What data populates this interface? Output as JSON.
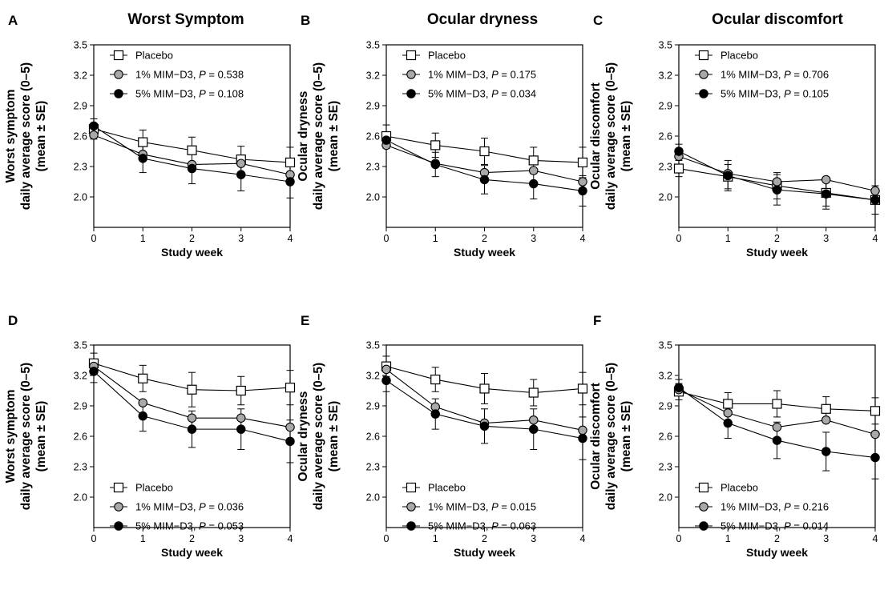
{
  "column_titles": [
    "Worst Symptom",
    "Ocular dryness",
    "Ocular discomfort"
  ],
  "colors": {
    "placebo_fill": "#ffffff",
    "mim1_fill": "#a9a9a9",
    "mim5_fill": "#000000",
    "line": "#000000"
  },
  "chart_data": [
    {
      "panel": "A",
      "type": "line",
      "ylabel_lines": [
        "Worst symptom",
        "daily average score (0–5)",
        "(mean ± SE)"
      ],
      "xlabel": "Study week",
      "x": [
        0,
        1,
        2,
        3,
        4
      ],
      "xlim": [
        0,
        4
      ],
      "ylim": [
        1.7,
        3.5
      ],
      "xticks": [
        "0",
        "1",
        "2",
        "3",
        "4"
      ],
      "yticks": [
        "2.0",
        "2.3",
        "2.6",
        "2.9",
        "3.2",
        "3.5"
      ],
      "legend_position": "top-left",
      "series": [
        {
          "name": "Placebo",
          "p_value": "",
          "marker": "open-square",
          "values": [
            2.67,
            2.54,
            2.46,
            2.37,
            2.34
          ],
          "errors": [
            0.1,
            0.12,
            0.13,
            0.13,
            0.15
          ]
        },
        {
          "name": "1% MIM−D3",
          "p_value": "0.538",
          "marker": "gray-circle",
          "values": [
            2.61,
            2.42,
            2.32,
            2.33,
            2.22
          ],
          "errors": [
            0,
            0,
            0,
            0,
            0
          ]
        },
        {
          "name": "5% MIM−D3",
          "p_value": "0.108",
          "marker": "black-circle",
          "values": [
            2.7,
            2.38,
            2.28,
            2.22,
            2.15
          ],
          "errors": [
            0.07,
            0.14,
            0.15,
            0.16,
            0.16
          ]
        }
      ]
    },
    {
      "panel": "B",
      "type": "line",
      "ylabel_lines": [
        "Ocular dryness",
        "daily average score (0–5)",
        "(mean ± SE)"
      ],
      "xlabel": "Study week",
      "x": [
        0,
        1,
        2,
        3,
        4
      ],
      "xlim": [
        0,
        4
      ],
      "ylim": [
        1.7,
        3.5
      ],
      "xticks": [
        "0",
        "1",
        "2",
        "3",
        "4"
      ],
      "yticks": [
        "2.0",
        "2.3",
        "2.6",
        "2.9",
        "3.2",
        "3.5"
      ],
      "legend_position": "top-left",
      "series": [
        {
          "name": "Placebo",
          "p_value": "",
          "marker": "open-square",
          "values": [
            2.6,
            2.51,
            2.45,
            2.36,
            2.34
          ],
          "errors": [
            0.11,
            0.12,
            0.13,
            0.13,
            0.15
          ]
        },
        {
          "name": "1% MIM−D3",
          "p_value": "0.175",
          "marker": "gray-circle",
          "values": [
            2.51,
            2.33,
            2.24,
            2.26,
            2.15
          ],
          "errors": [
            0,
            0,
            0,
            0,
            0
          ]
        },
        {
          "name": "5% MIM−D3",
          "p_value": "0.034",
          "marker": "black-circle",
          "values": [
            2.56,
            2.32,
            2.17,
            2.13,
            2.06
          ],
          "errors": [
            0.08,
            0.12,
            0.14,
            0.15,
            0.15
          ]
        }
      ]
    },
    {
      "panel": "C",
      "type": "line",
      "ylabel_lines": [
        "Ocular discomfort",
        "daily average score (0–5)",
        "(mean ± SE)"
      ],
      "xlabel": "Study week",
      "x": [
        0,
        1,
        2,
        3,
        4
      ],
      "xlim": [
        0,
        4
      ],
      "ylim": [
        1.7,
        3.5
      ],
      "xticks": [
        "0",
        "1",
        "2",
        "3",
        "4"
      ],
      "yticks": [
        "2.0",
        "2.3",
        "2.6",
        "2.9",
        "3.2",
        "3.5"
      ],
      "legend_position": "top-left",
      "series": [
        {
          "name": "Placebo",
          "p_value": "",
          "marker": "open-square",
          "values": [
            2.28,
            2.2,
            2.11,
            2.04,
            1.97
          ],
          "errors": [
            0.08,
            0.12,
            0.13,
            0.13,
            0.14
          ]
        },
        {
          "name": "1% MIM−D3",
          "p_value": "0.706",
          "marker": "gray-circle",
          "values": [
            2.4,
            2.23,
            2.15,
            2.17,
            2.06
          ],
          "errors": [
            0,
            0,
            0,
            0,
            0
          ]
        },
        {
          "name": "5% MIM−D3",
          "p_value": "0.105",
          "marker": "black-circle",
          "values": [
            2.45,
            2.21,
            2.07,
            2.03,
            1.97
          ],
          "errors": [
            0.07,
            0.15,
            0.15,
            0.15,
            0.14
          ]
        }
      ]
    },
    {
      "panel": "D",
      "type": "line",
      "ylabel_lines": [
        "Worst symptom",
        "daily average score (0–5)",
        "(mean ± SE)"
      ],
      "xlabel": "Study week",
      "x": [
        0,
        1,
        2,
        3,
        4
      ],
      "xlim": [
        0,
        4
      ],
      "ylim": [
        1.7,
        3.5
      ],
      "xticks": [
        "0",
        "1",
        "2",
        "3",
        "4"
      ],
      "yticks": [
        "2.0",
        "2.3",
        "2.6",
        "2.9",
        "3.2",
        "3.5"
      ],
      "legend_position": "bottom-left",
      "series": [
        {
          "name": "Placebo",
          "p_value": "",
          "marker": "open-square",
          "values": [
            3.32,
            3.17,
            3.06,
            3.05,
            3.08
          ],
          "errors": [
            0.1,
            0.13,
            0.17,
            0.14,
            0.17
          ]
        },
        {
          "name": "1% MIM−D3",
          "p_value": "0.036",
          "marker": "gray-circle",
          "values": [
            3.29,
            2.93,
            2.78,
            2.78,
            2.69
          ],
          "errors": [
            0,
            0,
            0,
            0,
            0
          ]
        },
        {
          "name": "5% MIM−D3",
          "p_value": "0.053",
          "marker": "black-circle",
          "values": [
            3.24,
            2.8,
            2.67,
            2.67,
            2.55
          ],
          "errors": [
            0.11,
            0.15,
            0.18,
            0.2,
            0.21
          ]
        }
      ]
    },
    {
      "panel": "E",
      "type": "line",
      "ylabel_lines": [
        "Ocular dryness",
        "daily average score (0–5)",
        "(mean ± SE)"
      ],
      "xlabel": "Study week",
      "x": [
        0,
        1,
        2,
        3,
        4
      ],
      "xlim": [
        0,
        4
      ],
      "ylim": [
        1.7,
        3.5
      ],
      "xticks": [
        "0",
        "1",
        "2",
        "3",
        "4"
      ],
      "yticks": [
        "2.0",
        "2.3",
        "2.6",
        "2.9",
        "3.2",
        "3.5"
      ],
      "legend_position": "bottom-left",
      "series": [
        {
          "name": "Placebo",
          "p_value": "",
          "marker": "open-square",
          "values": [
            3.29,
            3.16,
            3.07,
            3.03,
            3.07
          ],
          "errors": [
            0.1,
            0.12,
            0.15,
            0.13,
            0.16
          ]
        },
        {
          "name": "1% MIM−D3",
          "p_value": "0.015",
          "marker": "gray-circle",
          "values": [
            3.26,
            2.89,
            2.73,
            2.76,
            2.66
          ],
          "errors": [
            0,
            0,
            0,
            0,
            0
          ]
        },
        {
          "name": "5% MIM−D3",
          "p_value": "0.063",
          "marker": "black-circle",
          "values": [
            3.15,
            2.82,
            2.7,
            2.67,
            2.58
          ],
          "errors": [
            0.11,
            0.15,
            0.17,
            0.2,
            0.21
          ]
        }
      ]
    },
    {
      "panel": "F",
      "type": "line",
      "ylabel_lines": [
        "Ocular discomfort",
        "daily average score (0–5)",
        "(mean ± SE)"
      ],
      "xlabel": "Study week",
      "x": [
        0,
        1,
        2,
        3,
        4
      ],
      "xlim": [
        0,
        4
      ],
      "ylim": [
        1.7,
        3.5
      ],
      "xticks": [
        "0",
        "1",
        "2",
        "3",
        "4"
      ],
      "yticks": [
        "2.0",
        "2.3",
        "2.6",
        "2.9",
        "3.2",
        "3.5"
      ],
      "legend_position": "bottom-left",
      "series": [
        {
          "name": "Placebo",
          "p_value": "",
          "marker": "open-square",
          "values": [
            3.04,
            2.92,
            2.92,
            2.87,
            2.85
          ],
          "errors": [
            0.08,
            0.11,
            0.13,
            0.12,
            0.13
          ]
        },
        {
          "name": "1% MIM−D3",
          "p_value": "0.216",
          "marker": "gray-circle",
          "values": [
            3.06,
            2.83,
            2.69,
            2.76,
            2.62
          ],
          "errors": [
            0,
            0,
            0,
            0,
            0
          ]
        },
        {
          "name": "5% MIM−D3",
          "p_value": "0.014",
          "marker": "black-circle",
          "values": [
            3.08,
            2.73,
            2.56,
            2.45,
            2.39
          ],
          "errors": [
            0.08,
            0.15,
            0.18,
            0.19,
            0.21
          ]
        }
      ]
    }
  ]
}
